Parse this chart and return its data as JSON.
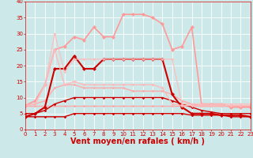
{
  "background_color": "#cce8e8",
  "grid_color": "#ffffff",
  "xlabel": "Vent moyen/en rafales ( km/h )",
  "xlabel_color": "#cc0000",
  "xlabel_fontsize": 7,
  "ylim": [
    0,
    40
  ],
  "xlim": [
    0,
    23
  ],
  "yticks": [
    0,
    5,
    10,
    15,
    20,
    25,
    30,
    35,
    40
  ],
  "xticks": [
    0,
    1,
    2,
    3,
    4,
    5,
    6,
    7,
    8,
    9,
    10,
    11,
    12,
    13,
    14,
    15,
    16,
    17,
    18,
    19,
    20,
    21,
    22,
    23
  ],
  "tick_color": "#cc0000",
  "tick_fontsize": 5,
  "lines": [
    {
      "x": [
        0,
        1,
        2,
        3,
        4,
        5,
        6,
        7,
        8,
        9,
        10,
        11,
        12,
        13,
        14,
        15,
        16,
        17,
        18,
        19,
        20,
        21,
        22,
        23
      ],
      "y": [
        4,
        4,
        4,
        4,
        4,
        5,
        5,
        5,
        5,
        5,
        5,
        5,
        5,
        5,
        5,
        5,
        5,
        4.5,
        4.5,
        4.5,
        4.5,
        4,
        4,
        4
      ],
      "color": "#cc0000",
      "linewidth": 1.0,
      "marker": "D",
      "markersize": 1.8,
      "alpha": 1.0
    },
    {
      "x": [
        0,
        1,
        2,
        3,
        4,
        5,
        6,
        7,
        8,
        9,
        10,
        11,
        12,
        13,
        14,
        15,
        16,
        17,
        18,
        19,
        20,
        21,
        22,
        23
      ],
      "y": [
        7.5,
        7.5,
        7.5,
        7.5,
        7.5,
        7.5,
        7.5,
        7.5,
        7.5,
        7.5,
        7.5,
        7.5,
        7.5,
        7.5,
        7.5,
        7.5,
        7.5,
        7.5,
        7.5,
        7.5,
        7.5,
        7.5,
        7.5,
        7.5
      ],
      "color": "#ffaaaa",
      "linewidth": 1.0,
      "marker": "D",
      "markersize": 1.8,
      "alpha": 1.0
    },
    {
      "x": [
        0,
        1,
        2,
        3,
        4,
        5,
        6,
        7,
        8,
        9,
        10,
        11,
        12,
        13,
        14,
        15,
        16,
        17,
        18,
        19,
        20,
        21,
        22,
        23
      ],
      "y": [
        5,
        5,
        6,
        8,
        9,
        10,
        10,
        10,
        10,
        10,
        10,
        10,
        10,
        10,
        10,
        9,
        8,
        7,
        6,
        5.5,
        5,
        5,
        5,
        5
      ],
      "color": "#cc0000",
      "linewidth": 1.0,
      "marker": "D",
      "markersize": 1.8,
      "alpha": 1.0
    },
    {
      "x": [
        0,
        1,
        2,
        3,
        4,
        5,
        6,
        7,
        8,
        9,
        10,
        11,
        12,
        13,
        14,
        15,
        16,
        17,
        18,
        19,
        20,
        21,
        22,
        23
      ],
      "y": [
        7.5,
        8,
        9,
        13,
        14,
        14,
        13,
        13,
        13,
        13,
        13,
        12,
        12,
        12,
        12,
        11,
        9,
        8,
        7.5,
        7.5,
        7.5,
        7.5,
        7.5,
        7.5
      ],
      "color": "#ffaaaa",
      "linewidth": 1.0,
      "marker": "D",
      "markersize": 1.8,
      "alpha": 1.0
    },
    {
      "x": [
        0,
        1,
        2,
        3,
        4,
        5,
        6,
        7,
        8,
        9,
        10,
        11,
        12,
        13,
        14,
        15,
        16,
        17,
        18,
        19,
        20,
        21,
        22,
        23
      ],
      "y": [
        4,
        5,
        7,
        19,
        19,
        23,
        19,
        19,
        22,
        22,
        22,
        22,
        22,
        22,
        22,
        11,
        7,
        5,
        5,
        5,
        4.5,
        4.5,
        4.5,
        4
      ],
      "color": "#cc0000",
      "linewidth": 1.5,
      "marker": "D",
      "markersize": 2.5,
      "alpha": 1.0
    },
    {
      "x": [
        0,
        1,
        2,
        3,
        4,
        5,
        6,
        7,
        8,
        9,
        10,
        11,
        12,
        13,
        14,
        15,
        16,
        17,
        18,
        19,
        20,
        21,
        22,
        23
      ],
      "y": [
        7.5,
        9,
        14,
        25,
        26,
        29,
        28,
        32,
        29,
        29,
        36,
        36,
        36,
        35,
        33,
        25,
        26,
        32,
        8,
        8,
        8,
        7,
        7,
        7
      ],
      "color": "#ff9999",
      "linewidth": 1.2,
      "marker": "D",
      "markersize": 2.5,
      "alpha": 1.0
    },
    {
      "x": [
        0,
        1,
        2,
        3,
        4,
        5,
        6,
        7,
        8,
        9,
        10,
        11,
        12,
        13,
        14,
        15,
        16,
        17,
        18,
        19,
        20,
        21,
        22,
        23
      ],
      "y": [
        7.5,
        8,
        14,
        25,
        14,
        15,
        14,
        14,
        14,
        14,
        14,
        14,
        14,
        14,
        13,
        8,
        7.5,
        7.5,
        7.5,
        7.5,
        7.5,
        7.5,
        7.5,
        7.5
      ],
      "color": "#ffbbbb",
      "linewidth": 1.0,
      "marker": "D",
      "markersize": 2.0,
      "alpha": 1.0
    },
    {
      "x": [
        0,
        1,
        2,
        3,
        4,
        5,
        6,
        7,
        8,
        9,
        10,
        11,
        12,
        13,
        14,
        15,
        16,
        17,
        18,
        19,
        20,
        21,
        22,
        23
      ],
      "y": [
        7.5,
        8,
        14,
        30,
        18,
        22,
        22,
        22,
        22,
        22,
        22,
        22,
        22,
        22,
        22,
        22,
        8,
        8,
        8,
        8,
        8,
        8,
        8,
        8
      ],
      "color": "#ffbbbb",
      "linewidth": 1.0,
      "marker": "D",
      "markersize": 2.0,
      "alpha": 0.85
    }
  ]
}
